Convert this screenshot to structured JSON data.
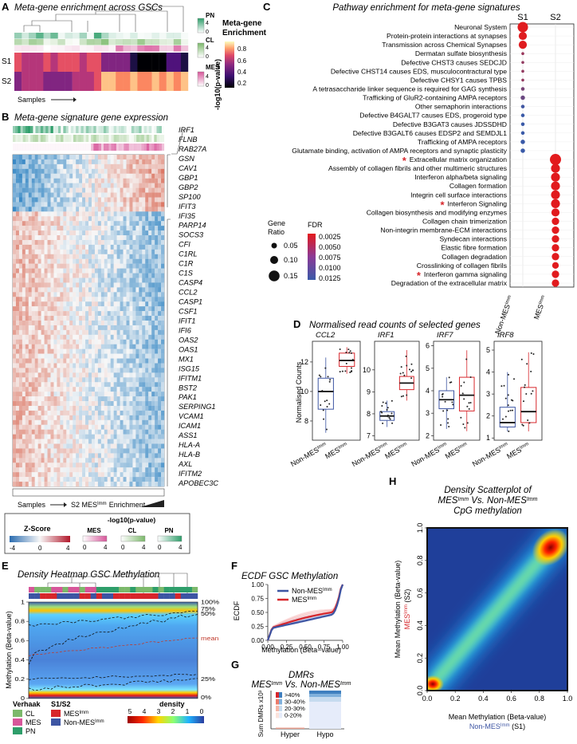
{
  "panel_a": {
    "label": "A",
    "title": "Meta-gene enrichment across GSCs",
    "rows": [
      "S1",
      "S2"
    ],
    "samples_label": "Samples",
    "legend_pn": "PN",
    "legend_cl": "CL",
    "legend_mes": "MES",
    "legend_scale_title1": "Meta-gene",
    "legend_scale_title2": "Enrichment",
    "scale_ticks": [
      "0.8",
      "0.6",
      "0.4",
      "0.2"
    ],
    "neglog_label": "-log10(p-value)",
    "small_ticks": [
      "4",
      "0",
      "4",
      "0",
      "4",
      "0"
    ]
  },
  "panel_b": {
    "label": "B",
    "title": "Meta-gene signature gene expression",
    "genes": [
      "IRF1",
      "FLNB",
      "RAB27A",
      "GSN",
      "CAV1",
      "GBP1",
      "GBP2",
      "SP100",
      "IFIT3",
      "IFI35",
      "PARP14",
      "SOCS3",
      "CFI",
      "C1RL",
      "C1R",
      "C1S",
      "CASP4",
      "CCL2",
      "CASP1",
      "CSF1",
      "IFIT1",
      "IFI6",
      "OAS2",
      "OAS1",
      "MX1",
      "ISG15",
      "IFITM1",
      "BST2",
      "PAK1",
      "SERPING1",
      "VCAM1",
      "ICAM1",
      "ASS1",
      "HLA-A",
      "HLA-B",
      "AXL",
      "IFITM2",
      "APOBEC3C"
    ],
    "samples_label": "Samples",
    "enrichment_label": "S2 MES",
    "enrichment_sup": "Imm",
    "enrichment_word": "Enrichment",
    "zscore_title": "Z-Score",
    "zscore_ticks": [
      "-4",
      "0",
      "4"
    ],
    "pval_title": "-log10(p-value)",
    "pval_groups": [
      "MES",
      "CL",
      "PN"
    ],
    "pval_ticks": [
      "0",
      "4"
    ]
  },
  "panel_c": {
    "label": "C",
    "title": "Pathway enrichment for meta-gene signatures",
    "columns": [
      "S1",
      "S2"
    ],
    "x_labels": [
      "Non-MES",
      "MES"
    ],
    "x_sup": "Imm",
    "pathways": [
      {
        "name": "Neuronal System",
        "col": 0,
        "ratio": 0.15,
        "fdr": 0.0003,
        "star": false
      },
      {
        "name": "Protein-protein interactions at synapses",
        "col": 0,
        "ratio": 0.12,
        "fdr": 0.0004,
        "star": false
      },
      {
        "name": "Transmission across Chemical Synapses",
        "col": 0,
        "ratio": 0.12,
        "fdr": 0.0004,
        "star": false
      },
      {
        "name": "Dermatan sulfate biosynthesis",
        "col": 0,
        "ratio": 0.05,
        "fdr": 0.0055,
        "star": false
      },
      {
        "name": "Defective CHST3 causes SEDCJD",
        "col": 0,
        "ratio": 0.05,
        "fdr": 0.006,
        "star": false
      },
      {
        "name": "Defective CHST14 causes EDS, musculocontractural type",
        "col": 0,
        "ratio": 0.05,
        "fdr": 0.006,
        "star": false
      },
      {
        "name": "Defective CHSY1 causes TPBS",
        "col": 0,
        "ratio": 0.05,
        "fdr": 0.006,
        "star": false
      },
      {
        "name": "A tetrasaccharide linker sequence is required for GAG synthesis",
        "col": 0,
        "ratio": 0.06,
        "fdr": 0.008,
        "star": false
      },
      {
        "name": "Trafficking of GluR2-containing AMPA receptors",
        "col": 0,
        "ratio": 0.07,
        "fdr": 0.009,
        "star": false
      },
      {
        "name": "Other semaphorin interactions",
        "col": 0,
        "ratio": 0.06,
        "fdr": 0.012,
        "star": false
      },
      {
        "name": "Defective B4GALT7 causes EDS, progeroid type",
        "col": 0,
        "ratio": 0.06,
        "fdr": 0.0125,
        "star": false
      },
      {
        "name": "Defective B3GAT3 causes JDSSDHD",
        "col": 0,
        "ratio": 0.06,
        "fdr": 0.0125,
        "star": false
      },
      {
        "name": "Defective B3GALT6 causes EDSP2 and SEMDJL1",
        "col": 0,
        "ratio": 0.06,
        "fdr": 0.0125,
        "star": false
      },
      {
        "name": "Trafficking of AMPA receptors",
        "col": 0,
        "ratio": 0.07,
        "fdr": 0.0125,
        "star": false
      },
      {
        "name": "Glutamate binding, activation of AMPA receptors and synaptic plasticity",
        "col": 0,
        "ratio": 0.07,
        "fdr": 0.0125,
        "star": false
      },
      {
        "name": "Extracellular matrix organization",
        "col": 1,
        "ratio": 0.16,
        "fdr": 0.0001,
        "star": true
      },
      {
        "name": "Assembly of collagen fibrils and other multimeric structures",
        "col": 1,
        "ratio": 0.13,
        "fdr": 0.0002,
        "star": false
      },
      {
        "name": "Interferon alpha/beta signaling",
        "col": 1,
        "ratio": 0.13,
        "fdr": 0.0002,
        "star": false
      },
      {
        "name": "Collagen formation",
        "col": 1,
        "ratio": 0.13,
        "fdr": 0.0002,
        "star": false
      },
      {
        "name": "Integrin cell surface interactions",
        "col": 1,
        "ratio": 0.13,
        "fdr": 0.0002,
        "star": false
      },
      {
        "name": "Interferon Signaling",
        "col": 1,
        "ratio": 0.13,
        "fdr": 0.0002,
        "star": true
      },
      {
        "name": "Collagen biosynthesis and modifying enzymes",
        "col": 1,
        "ratio": 0.12,
        "fdr": 0.0002,
        "star": false
      },
      {
        "name": "Collagen chain trimerization",
        "col": 1,
        "ratio": 0.11,
        "fdr": 0.0002,
        "star": false
      },
      {
        "name": "Non-integrin membrane-ECM interactions",
        "col": 1,
        "ratio": 0.11,
        "fdr": 0.0002,
        "star": false
      },
      {
        "name": "Syndecan interactions",
        "col": 1,
        "ratio": 0.11,
        "fdr": 0.0002,
        "star": false
      },
      {
        "name": "Elastic fibre formation",
        "col": 1,
        "ratio": 0.11,
        "fdr": 0.0002,
        "star": false
      },
      {
        "name": "Collagen degradation",
        "col": 1,
        "ratio": 0.11,
        "fdr": 0.0002,
        "star": false
      },
      {
        "name": "Crosslinking of collagen fibrils",
        "col": 1,
        "ratio": 0.1,
        "fdr": 0.0002,
        "star": false
      },
      {
        "name": "Interferon gamma signaling",
        "col": 1,
        "ratio": 0.11,
        "fdr": 0.0002,
        "star": true
      },
      {
        "name": "Degradation of the extracellular matrix",
        "col": 1,
        "ratio": 0.11,
        "fdr": 0.0002,
        "star": false
      }
    ],
    "legend_ratio_title": "Gene\nRatio",
    "ratio_ticks": [
      "0.05",
      "0.10",
      "0.15"
    ],
    "legend_fdr_title": "FDR",
    "fdr_ticks": [
      "0.0025",
      "0.0050",
      "0.0075",
      "0.0100",
      "0.0125"
    ]
  },
  "panel_d": {
    "label": "D",
    "title": "Normalised read counts of selected genes",
    "ylabel": "Normalised Counts",
    "x_labels": [
      "Non-MES",
      "MES"
    ],
    "x_sup": "Imm",
    "boxes": [
      {
        "gene": "CCL2",
        "ylim": [
          6.7,
          13.4
        ],
        "ticks": [
          "8",
          "10",
          "12"
        ],
        "tick_vals": [
          8,
          10,
          12
        ],
        "non": {
          "q1": 8.8,
          "med": 10.0,
          "q3": 10.9,
          "lo": 7.2,
          "hi": 12.3
        },
        "mes": {
          "q1": 11.7,
          "med": 12.1,
          "q3": 12.6,
          "lo": 11.2,
          "hi": 13.0
        }
      },
      {
        "gene": "IRF1",
        "ylim": [
          6.8,
          11.3
        ],
        "ticks": [
          "7",
          "8",
          "9",
          "10"
        ],
        "tick_vals": [
          7,
          8,
          9,
          10
        ],
        "non": {
          "q1": 7.7,
          "med": 7.9,
          "q3": 8.1,
          "lo": 7.4,
          "hi": 8.6
        },
        "mes": {
          "q1": 9.1,
          "med": 9.4,
          "q3": 9.7,
          "lo": 8.6,
          "hi": 10.9
        }
      },
      {
        "gene": "IRF7",
        "ylim": [
          1.8,
          6.2
        ],
        "ticks": [
          "2",
          "3",
          "4",
          "5",
          "6"
        ],
        "tick_vals": [
          2,
          3,
          4,
          5,
          6
        ],
        "non": {
          "q1": 3.2,
          "med": 3.6,
          "q3": 4.0,
          "lo": 2.3,
          "hi": 4.6
        },
        "mes": {
          "q1": 3.1,
          "med": 3.8,
          "q3": 4.6,
          "lo": 2.2,
          "hi": 5.8
        }
      },
      {
        "gene": "IRF8",
        "ylim": [
          0.9,
          5.4
        ],
        "ticks": [
          "1",
          "2",
          "3",
          "4",
          "5"
        ],
        "tick_vals": [
          1,
          2,
          3,
          4,
          5
        ],
        "non": {
          "q1": 1.5,
          "med": 1.7,
          "q3": 2.4,
          "lo": 1.3,
          "hi": 4.0
        },
        "mes": {
          "q1": 1.7,
          "med": 2.2,
          "q3": 3.3,
          "lo": 1.3,
          "hi": 4.9
        }
      }
    ]
  },
  "panel_e": {
    "label": "E",
    "title": "Density Heatmap GSC Methylation",
    "ylabel": "Methylation (Beta-value)",
    "yticks": [
      "0",
      "0.2",
      "0.4",
      "0.6",
      "0.8",
      "1"
    ],
    "ytick_vals": [
      0,
      0.2,
      0.4,
      0.6,
      0.8,
      1.0
    ],
    "right_labels": [
      "100%",
      "75%",
      "50%",
      "mean",
      "25%",
      "0%"
    ],
    "right_vals": [
      1.0,
      0.93,
      0.88,
      0.62,
      0.2,
      0.01
    ],
    "verhaak_title": "Verhaak",
    "verhaak_items": [
      "CL",
      "MES",
      "PN"
    ],
    "s_title": "S1/S2",
    "s_items": [
      "MES",
      "Non-MES"
    ],
    "s_sup": "Imm",
    "density_title": "density",
    "density_ticks": [
      "5",
      "4",
      "3",
      "2",
      "1",
      "0"
    ]
  },
  "panel_f": {
    "label": "F",
    "title": "ECDF GSC Methylation",
    "ylabel": "ECDF",
    "xlabel": "Methylation (Beta−value)",
    "ticks": [
      "0.00",
      "0.25",
      "0.50",
      "0.75",
      "1.00"
    ],
    "tick_vals": [
      0,
      0.25,
      0.5,
      0.75,
      1.0
    ],
    "legend": [
      "Non-MES",
      "MES"
    ],
    "sup": "Imm"
  },
  "panel_g": {
    "label": "G",
    "title": "DMRs",
    "subtitle_a": "MES",
    "subtitle_b": " Vs. Non-MES",
    "sup": "Imm",
    "ylabel": "Sum DMRs x10³",
    "legend": [
      ">40%",
      "30-40%",
      "20-30%",
      "0-20%"
    ],
    "categories": [
      "Hyper",
      "Hypo"
    ]
  },
  "panel_h": {
    "label": "H",
    "title_line1": "Density Scatterplot of",
    "title_line2a": "MES",
    "title_line2b": " Vs. Non-MES",
    "title_line3": "CpG methylation",
    "sup": "Imm",
    "xlabel": "Mean Methylation (Beta-value)",
    "xlabel2a": "Non-MES",
    "xlabel2b": " (S1)",
    "ylabel": "Mean Methylation (Beta-value)",
    "ylabel2a": "MES",
    "ylabel2b": " (S2)",
    "ticks": [
      "0.0",
      "0.2",
      "0.4",
      "0.6",
      "0.8",
      "1.0"
    ],
    "tick_vals": [
      0,
      0.2,
      0.4,
      0.6,
      0.8,
      1.0
    ]
  },
  "colors": {
    "red": "#d7262b",
    "blue": "#3d55a3",
    "pn": "#2e9e6a",
    "cl": "#7cb96b",
    "mes": "#d7569a"
  }
}
